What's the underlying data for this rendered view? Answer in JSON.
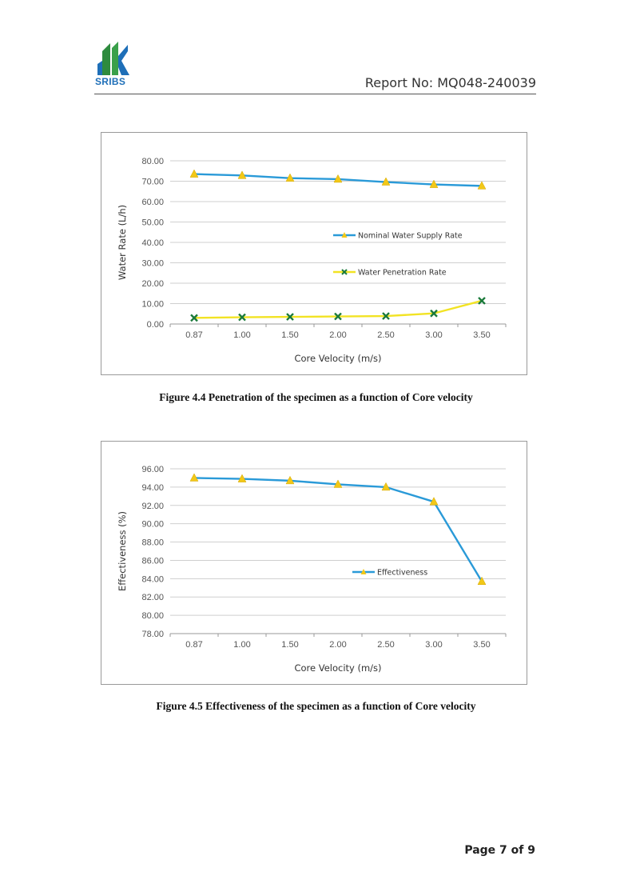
{
  "header": {
    "logo_text": "SRIBS",
    "report_no": "Report No: MQ048-240039"
  },
  "footer": {
    "page": "Page 7 of 9"
  },
  "colors": {
    "blue_line": "#2a9ad8",
    "yellow_line": "#f2e324",
    "triangle_marker": "#f2c818",
    "x_marker": "#1a7a3a",
    "logo_green": "#2e8b3e",
    "logo_blue": "#1e6fb8"
  },
  "chart_data": [
    {
      "type": "line",
      "title": "",
      "xlabel": "Core Velocity  (m/s)",
      "ylabel": "Water Rate  (L/h)",
      "categories": [
        "0.87",
        "1.00",
        "1.50",
        "2.00",
        "2.50",
        "3.00",
        "3.50"
      ],
      "y_ticks": [
        "0.00",
        "10.00",
        "20.00",
        "30.00",
        "40.00",
        "50.00",
        "60.00",
        "70.00",
        "80.00"
      ],
      "ylim": [
        0,
        80
      ],
      "grid": true,
      "series": [
        {
          "name": "Nominal Water Supply Rate",
          "values": [
            73.5,
            72.8,
            71.5,
            71.0,
            69.6,
            68.4,
            67.7
          ],
          "color": "#2a9ad8",
          "marker": "triangle"
        },
        {
          "name": "Water Penetration Rate",
          "values": [
            3.0,
            3.3,
            3.5,
            3.7,
            3.9,
            5.2,
            11.4
          ],
          "color": "#f2e324",
          "marker": "x"
        }
      ],
      "legend": "center-right",
      "caption": "Figure 4.4 Penetration of the specimen as a function of Core velocity"
    },
    {
      "type": "line",
      "title": "",
      "xlabel": "Core Velocity  (m/s)",
      "ylabel": "Effectiveness  (%)",
      "categories": [
        "0.87",
        "1.00",
        "1.50",
        "2.00",
        "2.50",
        "3.00",
        "3.50"
      ],
      "y_ticks": [
        "78.00",
        "80.00",
        "82.00",
        "84.00",
        "86.00",
        "88.00",
        "90.00",
        "92.00",
        "94.00",
        "96.00"
      ],
      "ylim": [
        78,
        96
      ],
      "grid": true,
      "series": [
        {
          "name": "Effectiveness",
          "values": [
            95.0,
            94.9,
            94.7,
            94.3,
            94.0,
            92.4,
            83.7
          ],
          "color": "#2a9ad8",
          "marker": "triangle"
        }
      ],
      "legend": "center-right",
      "caption": "Figure 4.5 Effectiveness of the specimen as a function of Core velocity"
    }
  ]
}
